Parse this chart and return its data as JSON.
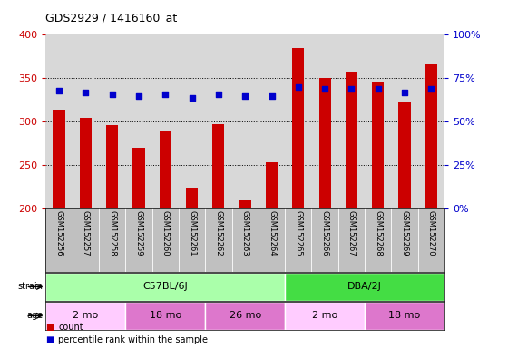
{
  "title": "GDS2929 / 1416160_at",
  "samples": [
    "GSM152256",
    "GSM152257",
    "GSM152258",
    "GSM152259",
    "GSM152260",
    "GSM152261",
    "GSM152262",
    "GSM152263",
    "GSM152264",
    "GSM152265",
    "GSM152266",
    "GSM152267",
    "GSM152268",
    "GSM152269",
    "GSM152270"
  ],
  "counts": [
    314,
    305,
    296,
    270,
    289,
    224,
    297,
    210,
    254,
    385,
    350,
    358,
    346,
    323,
    366
  ],
  "percentile_ranks": [
    68,
    67,
    66,
    65,
    66,
    64,
    66,
    65,
    65,
    70,
    69,
    69,
    69,
    67,
    69
  ],
  "ylim_left": [
    200,
    400
  ],
  "ylim_right": [
    0,
    100
  ],
  "yticks_left": [
    200,
    250,
    300,
    350,
    400
  ],
  "yticks_right": [
    0,
    25,
    50,
    75,
    100
  ],
  "bar_color": "#cc0000",
  "dot_color": "#0000cc",
  "strain_groups": [
    {
      "label": "C57BL/6J",
      "start": 0,
      "end": 9,
      "color": "#aaffaa"
    },
    {
      "label": "DBA/2J",
      "start": 9,
      "end": 15,
      "color": "#44dd44"
    }
  ],
  "age_groups": [
    {
      "label": "2 mo",
      "start": 0,
      "end": 3,
      "color": "#ffccff"
    },
    {
      "label": "18 mo",
      "start": 3,
      "end": 6,
      "color": "#ee88ee"
    },
    {
      "label": "26 mo",
      "start": 6,
      "end": 9,
      "color": "#ee88ee"
    },
    {
      "label": "2 mo",
      "start": 9,
      "end": 12,
      "color": "#ffccff"
    },
    {
      "label": "18 mo",
      "start": 12,
      "end": 15,
      "color": "#ee88ee"
    }
  ],
  "legend_count_label": "count",
  "legend_pct_label": "percentile rank within the sample",
  "left_color": "#cc0000",
  "right_color": "#0000cc",
  "bg_white": "#ffffff",
  "plot_bg": "#d8d8d8",
  "xlabel_bg": "#c0c0c0"
}
